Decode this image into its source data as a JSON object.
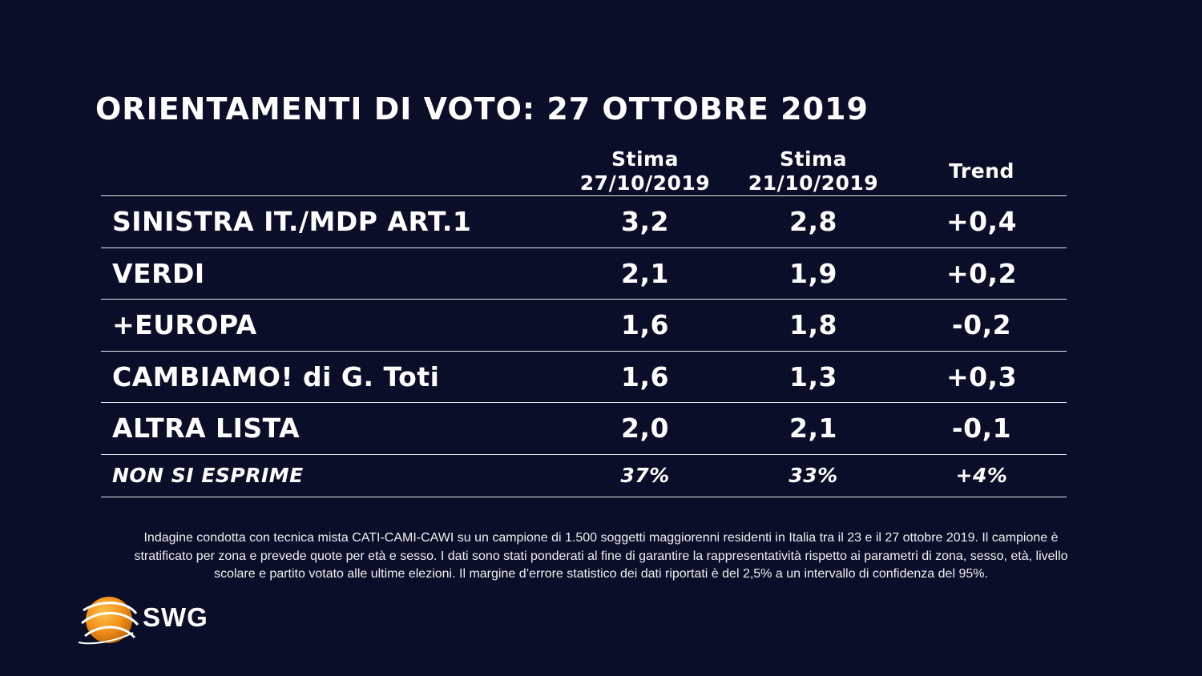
{
  "title": "ORIENTAMENTI DI VOTO: 27 OTTOBRE 2019",
  "chart_data": {
    "type": "table",
    "columns": [
      {
        "line1": "Stima",
        "line2": "27/10/2019"
      },
      {
        "line1": "Stima",
        "line2": "21/10/2019"
      },
      {
        "line1": "Trend",
        "line2": ""
      }
    ],
    "rows": [
      {
        "party": "SINISTRA IT./MDP ART.1",
        "stima_27": "3,2",
        "stima_21": "2,8",
        "trend": "+0,4"
      },
      {
        "party": "VERDI",
        "stima_27": "2,1",
        "stima_21": "1,9",
        "trend": "+0,2"
      },
      {
        "party": "+EUROPA",
        "stima_27": "1,6",
        "stima_21": "1,8",
        "trend": "-0,2"
      },
      {
        "party": "CAMBIAMO! di G. Toti",
        "stima_27": "1,6",
        "stima_21": "1,3",
        "trend": "+0,3"
      },
      {
        "party": "ALTRA LISTA",
        "stima_27": "2,0",
        "stima_21": "2,1",
        "trend": "-0,1"
      },
      {
        "party": "NON SI ESPRIME",
        "stima_27": "37%",
        "stima_21": "33%",
        "trend": "+4%"
      }
    ]
  },
  "footnote": {
    "line1": "Indagine condotta con tecnica mista CATI-CAMI-CAWI su un campione di 1.500 soggetti maggiorenni residenti in Italia tra il 23 e il 27 ottobre 2019. Il campione è",
    "line2": "stratificato per zona e prevede quote per età e sesso. I dati sono stati ponderati al fine di garantire la rappresentatività rispetto ai parametri di zona, sesso, età, livello",
    "line3": "scolare e partito votato alle ultime elezioni. Il margine d’errore statistico dei dati riportati è del 2,5% a un intervallo di confidenza del 95%."
  },
  "logo": {
    "text": "SWG",
    "icon": "orange-globe-logo-icon"
  },
  "colors": {
    "background": "#0a0e28",
    "text": "#ffffff",
    "rule": "#e8e8ee",
    "logo_orange": "#f39019"
  }
}
